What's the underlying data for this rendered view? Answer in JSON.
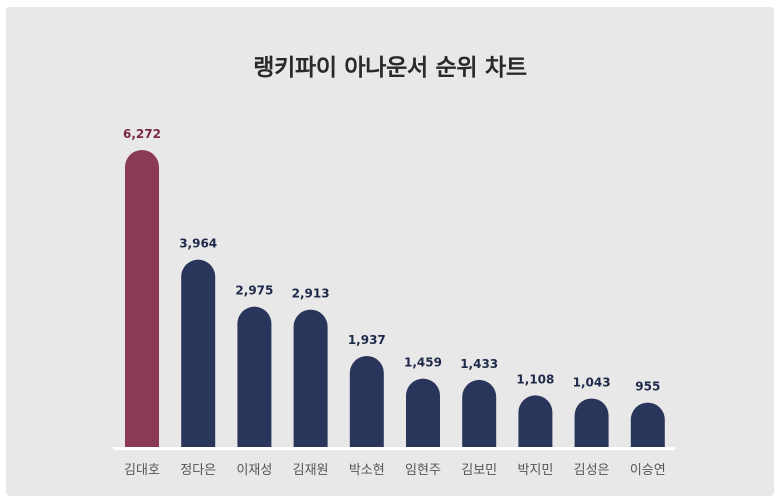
{
  "chart_data": {
    "type": "bar",
    "title": "랭키파이 아나운서 순위 차트",
    "categories": [
      "김대호",
      "정다은",
      "이재성",
      "김재원",
      "박소현",
      "임현주",
      "김보민",
      "박지민",
      "김성은",
      "이승연"
    ],
    "values": [
      6272,
      3964,
      2975,
      2913,
      1937,
      1459,
      1433,
      1108,
      1043,
      955
    ],
    "value_labels": [
      "6,272",
      "3,964",
      "2,975",
      "2,913",
      "1,937",
      "1,459",
      "1,433",
      "1,108",
      "1,043",
      "955"
    ],
    "highlight_index": 0,
    "colors": {
      "highlight_bar": "#8a3a57",
      "highlight_label": "#7a2a45",
      "bar": "#29355a",
      "label": "#1f2a4a",
      "baseline": "#ffffff"
    },
    "ylim": [
      0,
      6272
    ],
    "grid": false,
    "legend": "none"
  }
}
